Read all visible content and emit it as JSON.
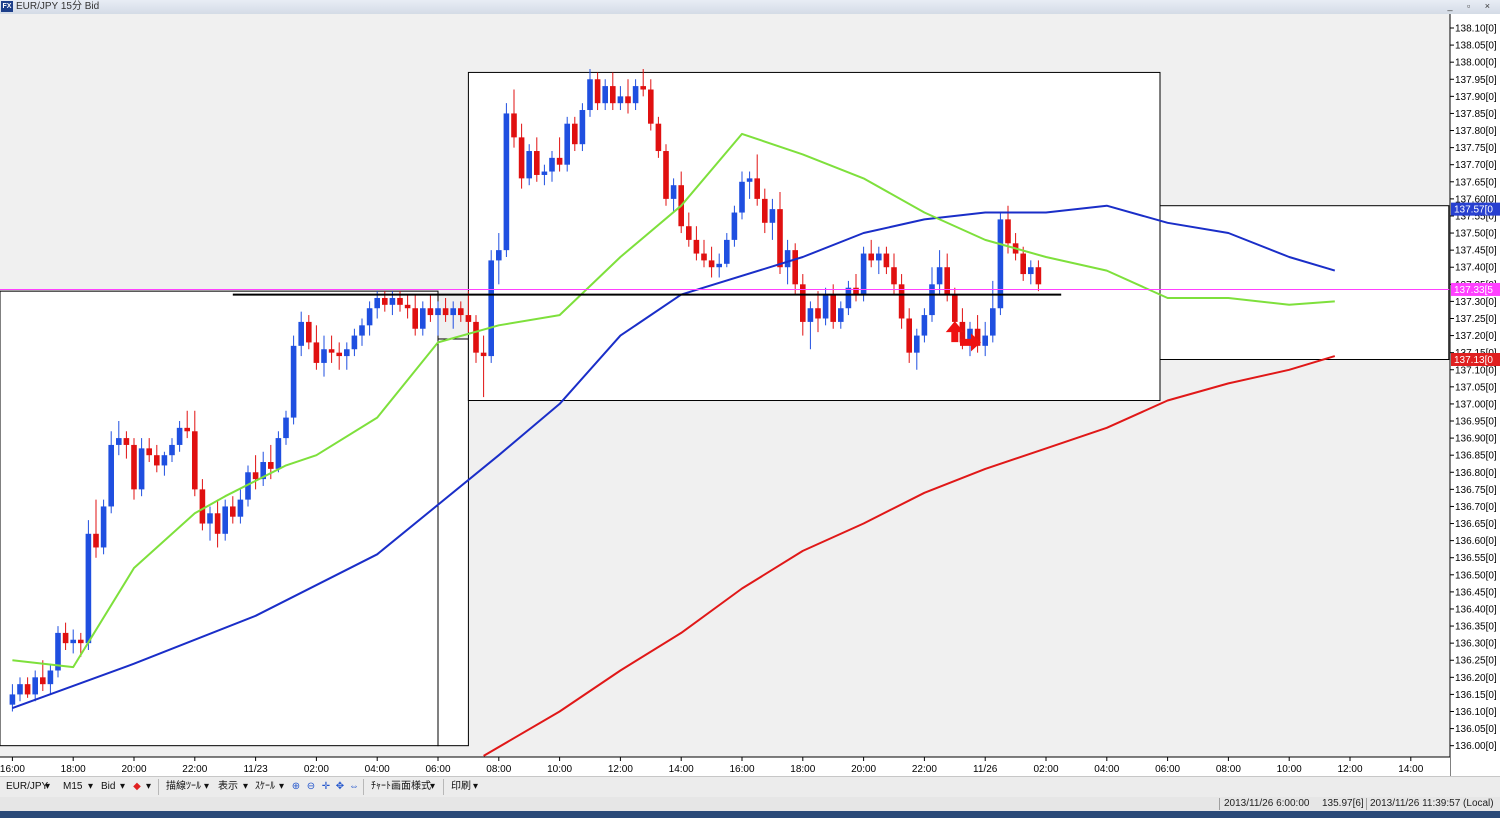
{
  "window": {
    "title": "EUR/JPY 15分 Bid",
    "app_icon": "fx-app-icon",
    "controls": "_ ▫ ×"
  },
  "toolbar": {
    "symbol": "EUR/JPY",
    "timeframe": "M15",
    "price_type": "Bid",
    "drawing_tools": "描線ﾂｰﾙ",
    "display": "表示",
    "scale": "ｽｹｰﾙ",
    "chart_style": "ﾁｬｰﾄ画面様式",
    "print": "印刷"
  },
  "status": {
    "cursor_time": "2013/11/26 6:00:00",
    "cursor_price": "135.97[6]",
    "local_time": "2013/11/26 11:39:57 (Local)"
  },
  "colors": {
    "bull": "#1f4fe0",
    "bear": "#e01010",
    "ma_short": "#7ee03c",
    "ma_mid": "#1a2ec8",
    "ma_long": "#e01818",
    "current_price_line": "#ff40ff",
    "level_line": "#000000",
    "arrow": "#ee1111"
  },
  "chart_data": {
    "type": "candlestick",
    "symbol": "EUR/JPY",
    "timeframe": "M15",
    "ylim": [
      135.97,
      138.12
    ],
    "y_ticks": [
      "138.10[0]",
      "138.05[0]",
      "138.00[0]",
      "137.95[0]",
      "137.90[0]",
      "137.85[0]",
      "137.80[0]",
      "137.75[0]",
      "137.70[0]",
      "137.65[0]",
      "137.60[0]",
      "137.55[0]",
      "137.50[0]",
      "137.45[0]",
      "137.40[0]",
      "137.35[0]",
      "137.30[0]",
      "137.25[0]",
      "137.20[0]",
      "137.15[0]",
      "137.10[0]",
      "137.05[0]",
      "137.00[0]",
      "136.95[0]",
      "136.90[0]",
      "136.85[0]",
      "136.80[0]",
      "136.75[0]",
      "136.70[0]",
      "136.65[0]",
      "136.60[0]",
      "136.55[0]",
      "136.50[0]",
      "136.45[0]",
      "136.40[0]",
      "136.35[0]",
      "136.30[0]",
      "136.25[0]",
      "136.20[0]",
      "136.15[0]",
      "136.10[0]",
      "136.05[0]",
      "136.00[0]"
    ],
    "x_ticks": [
      "16:00",
      "18:00",
      "20:00",
      "22:00",
      "11/23",
      "02:00",
      "04:00",
      "06:00",
      "08:00",
      "10:00",
      "12:00",
      "14:00",
      "16:00",
      "18:00",
      "20:00",
      "22:00",
      "11/26",
      "02:00",
      "04:00",
      "06:00",
      "08:00",
      "10:00",
      "12:00",
      "14:00"
    ],
    "x_tick_slots": [
      0,
      8,
      16,
      24,
      32,
      40,
      48,
      56,
      64,
      72,
      80,
      88,
      96,
      104,
      112,
      120,
      128,
      136,
      144,
      152,
      160,
      168,
      176,
      184
    ],
    "price_tags": [
      {
        "label": "137.57[0",
        "value": 137.57,
        "color": "#2840d0"
      },
      {
        "label": "137.33[5",
        "value": 137.335,
        "color": "#ff40ff"
      },
      {
        "label": "137.13[0",
        "value": 137.13,
        "color": "#e02020"
      }
    ],
    "current_price": 137.335,
    "level_line": {
      "value": 137.32,
      "from_slot": 29,
      "to_slot": 138
    },
    "boxes": [
      {
        "from_slot": -2,
        "to_slot": 56,
        "high": 137.33,
        "low": 136.0
      },
      {
        "from_slot": 56,
        "to_slot": 60,
        "high": 137.19,
        "low": 136.0
      },
      {
        "from_slot": 60,
        "to_slot": 151,
        "high": 137.97,
        "low": 137.01
      },
      {
        "from_slot": 151,
        "to_slot": 189,
        "high": 137.58,
        "low": 137.13
      }
    ],
    "arrows": [
      {
        "type": "up",
        "slot": 124,
        "value": 137.21
      },
      {
        "type": "right",
        "slot": 126,
        "value": 137.18
      }
    ],
    "ma_short": [
      [
        0,
        136.25
      ],
      [
        8,
        136.23
      ],
      [
        16,
        136.52
      ],
      [
        24,
        136.68
      ],
      [
        28,
        136.73
      ],
      [
        36,
        136.82
      ],
      [
        40,
        136.85
      ],
      [
        48,
        136.96
      ],
      [
        56,
        137.18
      ],
      [
        64,
        137.23
      ],
      [
        72,
        137.26
      ],
      [
        80,
        137.43
      ],
      [
        88,
        137.58
      ],
      [
        96,
        137.79
      ],
      [
        104,
        137.73
      ],
      [
        112,
        137.66
      ],
      [
        120,
        137.56
      ],
      [
        128,
        137.48
      ],
      [
        136,
        137.43
      ],
      [
        144,
        137.39
      ],
      [
        152,
        137.31
      ],
      [
        160,
        137.31
      ],
      [
        168,
        137.29
      ],
      [
        174,
        137.3
      ]
    ],
    "ma_mid": [
      [
        0,
        136.11
      ],
      [
        16,
        136.24
      ],
      [
        32,
        136.38
      ],
      [
        48,
        136.56
      ],
      [
        64,
        136.85
      ],
      [
        72,
        137.0
      ],
      [
        80,
        137.2
      ],
      [
        88,
        137.32
      ],
      [
        104,
        137.43
      ],
      [
        112,
        137.5
      ],
      [
        120,
        137.54
      ],
      [
        128,
        137.56
      ],
      [
        136,
        137.56
      ],
      [
        144,
        137.58
      ],
      [
        152,
        137.53
      ],
      [
        160,
        137.5
      ],
      [
        168,
        137.43
      ],
      [
        174,
        137.39
      ]
    ],
    "ma_long": [
      [
        62,
        135.97
      ],
      [
        72,
        136.1
      ],
      [
        80,
        136.22
      ],
      [
        88,
        136.33
      ],
      [
        96,
        136.46
      ],
      [
        104,
        136.57
      ],
      [
        112,
        136.65
      ],
      [
        120,
        136.74
      ],
      [
        128,
        136.81
      ],
      [
        136,
        136.87
      ],
      [
        144,
        136.93
      ],
      [
        152,
        137.01
      ],
      [
        160,
        137.06
      ],
      [
        168,
        137.1
      ],
      [
        174,
        137.14
      ]
    ],
    "candles": [
      [
        0,
        136.12,
        136.18,
        136.1,
        136.15
      ],
      [
        1,
        136.15,
        136.2,
        136.13,
        136.18
      ],
      [
        2,
        136.18,
        136.2,
        136.14,
        136.15
      ],
      [
        3,
        136.15,
        136.22,
        136.13,
        136.2
      ],
      [
        4,
        136.2,
        136.25,
        136.16,
        136.18
      ],
      [
        5,
        136.18,
        136.24,
        136.15,
        136.22
      ],
      [
        6,
        136.22,
        136.35,
        136.2,
        136.33
      ],
      [
        7,
        136.33,
        136.36,
        136.28,
        136.3
      ],
      [
        8,
        136.3,
        136.34,
        136.27,
        136.31
      ],
      [
        9,
        136.31,
        136.33,
        136.26,
        136.3
      ],
      [
        10,
        136.3,
        136.66,
        136.28,
        136.62
      ],
      [
        11,
        136.62,
        136.72,
        136.55,
        136.58
      ],
      [
        12,
        136.58,
        136.72,
        136.56,
        136.7
      ],
      [
        13,
        136.7,
        136.92,
        136.68,
        136.88
      ],
      [
        14,
        136.88,
        136.95,
        136.85,
        136.9
      ],
      [
        15,
        136.9,
        136.92,
        136.84,
        136.88
      ],
      [
        16,
        136.88,
        136.9,
        136.72,
        136.75
      ],
      [
        17,
        136.75,
        136.9,
        136.73,
        136.87
      ],
      [
        18,
        136.87,
        136.9,
        136.83,
        136.85
      ],
      [
        19,
        136.85,
        136.88,
        136.8,
        136.82
      ],
      [
        20,
        136.82,
        136.86,
        136.79,
        136.85
      ],
      [
        21,
        136.85,
        136.9,
        136.83,
        136.88
      ],
      [
        22,
        136.88,
        136.95,
        136.86,
        136.93
      ],
      [
        23,
        136.93,
        136.98,
        136.9,
        136.92
      ],
      [
        24,
        136.92,
        136.98,
        136.73,
        136.75
      ],
      [
        25,
        136.75,
        136.78,
        136.63,
        136.65
      ],
      [
        26,
        136.65,
        136.7,
        136.6,
        136.68
      ],
      [
        27,
        136.68,
        136.72,
        136.58,
        136.62
      ],
      [
        28,
        136.62,
        136.72,
        136.6,
        136.7
      ],
      [
        29,
        136.7,
        136.73,
        136.65,
        136.67
      ],
      [
        30,
        136.67,
        136.75,
        136.65,
        136.72
      ],
      [
        31,
        136.72,
        136.82,
        136.7,
        136.8
      ],
      [
        32,
        136.8,
        136.85,
        136.75,
        136.78
      ],
      [
        33,
        136.78,
        136.86,
        136.76,
        136.83
      ],
      [
        34,
        136.83,
        136.88,
        136.78,
        136.81
      ],
      [
        35,
        136.81,
        136.92,
        136.8,
        136.9
      ],
      [
        36,
        136.9,
        136.98,
        136.88,
        136.96
      ],
      [
        37,
        136.96,
        137.2,
        136.94,
        137.17
      ],
      [
        38,
        137.17,
        137.27,
        137.14,
        137.24
      ],
      [
        39,
        137.24,
        137.26,
        137.16,
        137.18
      ],
      [
        40,
        137.18,
        137.23,
        137.1,
        137.12
      ],
      [
        41,
        137.12,
        137.2,
        137.08,
        137.16
      ],
      [
        42,
        137.16,
        137.2,
        137.12,
        137.15
      ],
      [
        43,
        137.15,
        137.18,
        137.1,
        137.14
      ],
      [
        44,
        137.14,
        137.18,
        137.1,
        137.16
      ],
      [
        45,
        137.16,
        137.22,
        137.14,
        137.2
      ],
      [
        46,
        137.2,
        137.25,
        137.17,
        137.23
      ],
      [
        47,
        137.23,
        137.3,
        137.2,
        137.28
      ],
      [
        48,
        137.28,
        137.33,
        137.25,
        137.31
      ],
      [
        49,
        137.31,
        137.33,
        137.27,
        137.29
      ],
      [
        50,
        137.29,
        137.33,
        137.26,
        137.31
      ],
      [
        51,
        137.31,
        137.33,
        137.27,
        137.29
      ],
      [
        52,
        137.29,
        137.32,
        137.25,
        137.28
      ],
      [
        53,
        137.28,
        137.32,
        137.2,
        137.22
      ],
      [
        54,
        137.22,
        137.3,
        137.2,
        137.28
      ],
      [
        55,
        137.28,
        137.32,
        137.24,
        137.26
      ],
      [
        56,
        137.26,
        137.3,
        137.2,
        137.28
      ],
      [
        57,
        137.28,
        137.31,
        137.24,
        137.26
      ],
      [
        58,
        137.26,
        137.3,
        137.22,
        137.28
      ],
      [
        59,
        137.28,
        137.3,
        137.24,
        137.26
      ],
      [
        60,
        137.26,
        137.33,
        137.21,
        137.24
      ],
      [
        61,
        137.24,
        137.26,
        137.12,
        137.15
      ],
      [
        62,
        137.15,
        137.2,
        137.02,
        137.14
      ],
      [
        63,
        137.14,
        137.45,
        137.12,
        137.42
      ],
      [
        64,
        137.42,
        137.5,
        137.35,
        137.45
      ],
      [
        65,
        137.45,
        137.88,
        137.43,
        137.85
      ],
      [
        66,
        137.85,
        137.92,
        137.75,
        137.78
      ],
      [
        67,
        137.78,
        137.82,
        137.63,
        137.66
      ],
      [
        68,
        137.66,
        137.76,
        137.64,
        137.74
      ],
      [
        69,
        137.74,
        137.78,
        137.65,
        137.67
      ],
      [
        70,
        137.67,
        137.7,
        137.64,
        137.68
      ],
      [
        71,
        137.68,
        137.74,
        137.65,
        137.72
      ],
      [
        72,
        137.72,
        137.78,
        137.68,
        137.7
      ],
      [
        73,
        137.7,
        137.84,
        137.68,
        137.82
      ],
      [
        74,
        137.82,
        137.84,
        137.74,
        137.76
      ],
      [
        75,
        137.76,
        137.88,
        137.74,
        137.86
      ],
      [
        76,
        137.86,
        137.98,
        137.84,
        137.95
      ],
      [
        77,
        137.95,
        137.97,
        137.86,
        137.88
      ],
      [
        78,
        137.88,
        137.95,
        137.86,
        137.93
      ],
      [
        79,
        137.93,
        137.97,
        137.86,
        137.88
      ],
      [
        80,
        137.88,
        137.93,
        137.86,
        137.9
      ],
      [
        81,
        137.9,
        137.95,
        137.85,
        137.88
      ],
      [
        82,
        137.88,
        137.95,
        137.86,
        137.93
      ],
      [
        83,
        137.93,
        137.98,
        137.9,
        137.92
      ],
      [
        84,
        137.92,
        137.95,
        137.8,
        137.82
      ],
      [
        85,
        137.82,
        137.84,
        137.72,
        137.74
      ],
      [
        86,
        137.74,
        137.76,
        137.58,
        137.6
      ],
      [
        87,
        137.6,
        137.66,
        137.56,
        137.64
      ],
      [
        88,
        137.64,
        137.68,
        137.5,
        137.52
      ],
      [
        89,
        137.52,
        137.56,
        137.46,
        137.48
      ],
      [
        90,
        137.48,
        137.52,
        137.42,
        137.44
      ],
      [
        91,
        137.44,
        137.48,
        137.4,
        137.42
      ],
      [
        92,
        137.42,
        137.46,
        137.37,
        137.4
      ],
      [
        93,
        137.4,
        137.44,
        137.37,
        137.41
      ],
      [
        94,
        137.41,
        137.5,
        137.4,
        137.48
      ],
      [
        95,
        137.48,
        137.58,
        137.46,
        137.56
      ],
      [
        96,
        137.56,
        137.68,
        137.54,
        137.65
      ],
      [
        97,
        137.65,
        137.68,
        137.6,
        137.66
      ],
      [
        98,
        137.66,
        137.73,
        137.58,
        137.6
      ],
      [
        99,
        137.6,
        137.63,
        137.5,
        137.53
      ],
      [
        100,
        137.53,
        137.6,
        137.48,
        137.57
      ],
      [
        101,
        137.57,
        137.62,
        137.38,
        137.4
      ],
      [
        102,
        137.4,
        137.48,
        137.35,
        137.45
      ],
      [
        103,
        137.45,
        137.47,
        137.32,
        137.35
      ],
      [
        104,
        137.35,
        137.38,
        137.2,
        137.24
      ],
      [
        105,
        137.24,
        137.3,
        137.16,
        137.28
      ],
      [
        106,
        137.28,
        137.33,
        137.21,
        137.25
      ],
      [
        107,
        137.25,
        137.34,
        137.23,
        137.32
      ],
      [
        108,
        137.32,
        137.35,
        137.22,
        137.24
      ],
      [
        109,
        137.24,
        137.3,
        137.22,
        137.28
      ],
      [
        110,
        137.28,
        137.36,
        137.26,
        137.34
      ],
      [
        111,
        137.34,
        137.38,
        137.3,
        137.32
      ],
      [
        112,
        137.32,
        137.46,
        137.3,
        137.44
      ],
      [
        113,
        137.44,
        137.48,
        137.4,
        137.42
      ],
      [
        114,
        137.42,
        137.46,
        137.38,
        137.44
      ],
      [
        115,
        137.44,
        137.46,
        137.38,
        137.4
      ],
      [
        116,
        137.4,
        137.44,
        137.32,
        137.35
      ],
      [
        117,
        137.35,
        137.38,
        137.22,
        137.25
      ],
      [
        118,
        137.25,
        137.28,
        137.12,
        137.15
      ],
      [
        119,
        137.15,
        137.22,
        137.1,
        137.2
      ],
      [
        120,
        137.2,
        137.28,
        137.18,
        137.26
      ],
      [
        121,
        137.26,
        137.4,
        137.24,
        137.35
      ],
      [
        122,
        137.35,
        137.45,
        137.32,
        137.4
      ],
      [
        123,
        137.4,
        137.44,
        137.3,
        137.32
      ],
      [
        124,
        137.32,
        137.34,
        137.2,
        137.24
      ],
      [
        125,
        137.24,
        137.28,
        137.16,
        137.18
      ],
      [
        126,
        137.18,
        137.24,
        137.14,
        137.22
      ],
      [
        127,
        137.22,
        137.26,
        137.15,
        137.17
      ],
      [
        128,
        137.17,
        137.24,
        137.14,
        137.2
      ],
      [
        129,
        137.2,
        137.36,
        137.18,
        137.28
      ],
      [
        130,
        137.28,
        137.56,
        137.26,
        137.54
      ],
      [
        131,
        137.54,
        137.58,
        137.44,
        137.47
      ],
      [
        132,
        137.47,
        137.5,
        137.42,
        137.44
      ],
      [
        133,
        137.44,
        137.46,
        137.36,
        137.38
      ],
      [
        134,
        137.38,
        137.42,
        137.35,
        137.4
      ],
      [
        135,
        137.4,
        137.42,
        137.33,
        137.35
      ]
    ]
  }
}
